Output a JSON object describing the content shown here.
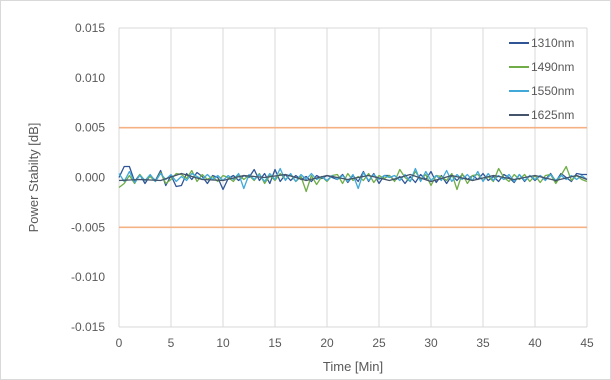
{
  "chart_data": {
    "type": "line",
    "xlabel": "Time [Min]",
    "ylabel": "Power Stabilty [dB]",
    "xlim": [
      0,
      45
    ],
    "ylim": [
      -0.015,
      0.015
    ],
    "xticks": [
      0,
      5,
      10,
      15,
      20,
      25,
      30,
      35,
      40,
      45
    ],
    "xtick_labels": [
      "0",
      "5",
      "10",
      "15",
      "20",
      "25",
      "30",
      "35",
      "40",
      "45"
    ],
    "yticks": [
      0.015,
      0.01,
      0.005,
      0.0,
      -0.005,
      -0.01,
      -0.015
    ],
    "ytick_labels": [
      "0.015",
      "0.010",
      "0.005",
      "0.000",
      "-0.005",
      "-0.010",
      "-0.015"
    ],
    "grid": "vertical",
    "legend_position": "top-right",
    "reference_lines": [
      {
        "y": 0.005,
        "color": "#f4b183"
      },
      {
        "y": -0.005,
        "color": "#f4b183"
      }
    ],
    "series": [
      {
        "name": "1310nm",
        "color": "#2f5597",
        "x": [
          0,
          0.5,
          1,
          1.5,
          2,
          2.5,
          3,
          3.5,
          4,
          4.5,
          5,
          5.5,
          6,
          6.5,
          7,
          7.5,
          8,
          8.5,
          9,
          9.5,
          10,
          10.5,
          11,
          11.5,
          12,
          12.5,
          13,
          13.5,
          14,
          14.5,
          15,
          15.5,
          16,
          16.5,
          17,
          17.5,
          18,
          18.5,
          19,
          19.5,
          20,
          20.5,
          21,
          21.5,
          22,
          22.5,
          23,
          23.5,
          24,
          24.5,
          25,
          25.5,
          26,
          26.5,
          27,
          27.5,
          28,
          28.5,
          29,
          29.5,
          30,
          30.5,
          31,
          31.5,
          32,
          32.5,
          33,
          33.5,
          34,
          34.5,
          35,
          35.5,
          36,
          36.5,
          37,
          37.5,
          38,
          38.5,
          39,
          39.5,
          40,
          40.5,
          41,
          41.5,
          42,
          42.5,
          43,
          43.5,
          44,
          44.5,
          45
        ],
        "y": [
          0.0,
          0.0011,
          0.0011,
          -0.0004,
          0.0003,
          -0.0006,
          0.0002,
          -0.0003,
          0.0007,
          -0.0008,
          0.0002,
          -0.0009,
          -0.0008,
          0.0004,
          -0.0002,
          0.0005,
          0.0001,
          -0.0006,
          0.0002,
          0.0,
          -0.0012,
          -0.0001,
          0.0002,
          -0.0003,
          0.0002,
          0.0,
          0.0008,
          -0.0003,
          0.0004,
          -0.0006,
          0.0008,
          -0.0004,
          0.0003,
          -0.0003,
          0.0002,
          -0.0002,
          0.0001,
          -0.0004,
          0.0002,
          -0.0001,
          0.0002,
          0.0,
          -0.0002,
          0.0003,
          -0.0005,
          0.0002,
          -0.0004,
          0.0006,
          -0.0004,
          0.0004,
          -0.0006,
          0.0002,
          0.0002,
          -0.0003,
          0.0001,
          -0.0006,
          0.0001,
          -0.0005,
          0.0003,
          -0.0002,
          0.0006,
          -0.0005,
          0.0002,
          -0.0006,
          0.0002,
          -0.0003,
          0.0003,
          -0.0002,
          0.0002,
          -0.0002,
          0.0004,
          -0.0003,
          0.0001,
          -0.0004,
          0.0003,
          0.0,
          -0.0005,
          0.0003,
          -0.0004,
          0.0002,
          -0.0003,
          0.0002,
          -0.0002,
          0.0004,
          -0.0004,
          0.0004,
          0.0,
          -0.0004,
          0.0004,
          0.0003,
          0.0003
        ]
      },
      {
        "name": "1490nm",
        "color": "#70ad47",
        "x": [
          0,
          0.5,
          1,
          1.5,
          2,
          2.5,
          3,
          3.5,
          4,
          4.5,
          5,
          5.5,
          6,
          6.5,
          7,
          7.5,
          8,
          8.5,
          9,
          9.5,
          10,
          10.5,
          11,
          11.5,
          12,
          12.5,
          13,
          13.5,
          14,
          14.5,
          15,
          15.5,
          16,
          16.5,
          17,
          17.5,
          18,
          18.5,
          19,
          19.5,
          20,
          20.5,
          21,
          21.5,
          22,
          22.5,
          23,
          23.5,
          24,
          24.5,
          25,
          25.5,
          26,
          26.5,
          27,
          27.5,
          28,
          28.5,
          29,
          29.5,
          30,
          30.5,
          31,
          31.5,
          32,
          32.5,
          33,
          33.5,
          34,
          34.5,
          35,
          35.5,
          36,
          36.5,
          37,
          37.5,
          38,
          38.5,
          39,
          39.5,
          40,
          40.5,
          41,
          41.5,
          42,
          42.5,
          43,
          43.5,
          44,
          44.5,
          45
        ],
        "y": [
          -0.001,
          -0.0006,
          0.0002,
          -0.0006,
          0.0003,
          -0.0003,
          0.0001,
          -0.0004,
          0.0005,
          -0.0006,
          -0.0002,
          0.0004,
          0.0003,
          -0.0001,
          0.0007,
          -0.0004,
          0.0003,
          -0.0002,
          0.0001,
          -0.0004,
          0.0002,
          0.0,
          -0.0004,
          0.0003,
          -0.0002,
          0.0002,
          -0.0003,
          0.0004,
          -0.0006,
          0.0002,
          -0.0003,
          0.0004,
          -0.0002,
          0.0003,
          -0.0004,
          0.0001,
          -0.0014,
          0.0002,
          -0.0007,
          0.0001,
          -0.0004,
          0.0002,
          0.0003,
          -0.0006,
          0.0004,
          -0.0003,
          0.0001,
          -0.0003,
          0.0004,
          -0.0005,
          0.0002,
          -0.0001,
          0.0002,
          -0.0004,
          0.0008,
          0.0,
          -0.0004,
          0.0006,
          -0.0002,
          0.0003,
          -0.0008,
          0.0002,
          0.0001,
          -0.0003,
          0.0004,
          -0.0012,
          0.0004,
          -0.0006,
          0.0002,
          0.0003,
          -0.0003,
          0.0001,
          -0.0004,
          0.0009,
          0.0,
          -0.0004,
          0.0003,
          -0.0002,
          0.0003,
          -0.0004,
          0.0002,
          -0.0005,
          0.0002,
          0.0003,
          -0.0006,
          0.0002,
          0.0011,
          -0.0003,
          0.0002,
          -0.0002,
          -0.0004
        ]
      },
      {
        "name": "1550nm",
        "color": "#41a9d9",
        "x": [
          0,
          0.5,
          1,
          1.5,
          2,
          2.5,
          3,
          3.5,
          4,
          4.5,
          5,
          5.5,
          6,
          6.5,
          7,
          7.5,
          8,
          8.5,
          9,
          9.5,
          10,
          10.5,
          11,
          11.5,
          12,
          12.5,
          13,
          13.5,
          14,
          14.5,
          15,
          15.5,
          16,
          16.5,
          17,
          17.5,
          18,
          18.5,
          19,
          19.5,
          20,
          20.5,
          21,
          21.5,
          22,
          22.5,
          23,
          23.5,
          24,
          24.5,
          25,
          25.5,
          26,
          26.5,
          27,
          27.5,
          28,
          28.5,
          29,
          29.5,
          30,
          30.5,
          31,
          31.5,
          32,
          32.5,
          33,
          33.5,
          34,
          34.5,
          35,
          35.5,
          36,
          36.5,
          37,
          37.5,
          38,
          38.5,
          39,
          39.5,
          40,
          40.5,
          41,
          41.5,
          42,
          42.5,
          43,
          43.5,
          44,
          44.5,
          45
        ],
        "y": [
          0.0004,
          -0.0004,
          0.0006,
          -0.0005,
          0.0002,
          -0.0003,
          0.0003,
          -0.0004,
          0.0004,
          -0.0002,
          0.0003,
          -0.0004,
          0.0001,
          -0.0003,
          0.0004,
          0.0001,
          -0.0002,
          0.0003,
          -0.0002,
          0.0002,
          -0.0003,
          0.0002,
          -0.0002,
          0.0004,
          -0.0011,
          0.0003,
          -0.0002,
          0.0003,
          -0.0004,
          0.0004,
          -0.0002,
          0.0009,
          -0.0003,
          0.0004,
          -0.0004,
          0.0003,
          -0.0002,
          0.0004,
          -0.0002,
          0.0001,
          -0.0003,
          0.0002,
          -0.0002,
          0.0002,
          -0.0004,
          0.0003,
          -0.0011,
          0.0005,
          -0.0003,
          0.0003,
          -0.0002,
          0.0002,
          0.0,
          0.0002,
          -0.0003,
          0.0003,
          -0.0004,
          0.0009,
          -0.0004,
          0.0006,
          -0.0003,
          0.0002,
          -0.0003,
          0.0007,
          -0.0004,
          0.0003,
          -0.0002,
          0.0003,
          -0.0003,
          0.0006,
          -0.0004,
          0.0004,
          -0.0003,
          0.0002,
          -0.0002,
          0.0003,
          -0.0004,
          0.0003,
          -0.0003,
          0.0002,
          -0.0002,
          0.0002,
          -0.0003,
          0.0003,
          -0.0003,
          0.0002,
          -0.0002,
          0.0002,
          -0.0002,
          0.0002,
          -0.0002
        ]
      },
      {
        "name": "1625nm",
        "color": "#44546a",
        "x": [
          0,
          2,
          4,
          6,
          8,
          10,
          12,
          14,
          16,
          18,
          20,
          22,
          24,
          26,
          28,
          30,
          32,
          34,
          36,
          38,
          40,
          42,
          44,
          45
        ],
        "y": [
          -0.0003,
          -0.0002,
          -0.0003,
          0.0004,
          -0.0002,
          -0.0003,
          0.0002,
          0.0,
          0.0003,
          -0.0003,
          0.0002,
          -0.0002,
          0.0002,
          -0.0003,
          0.0003,
          -0.0004,
          0.0002,
          -0.0003,
          0.0002,
          -0.0002,
          0.0002,
          -0.0003,
          0.0002,
          -0.0002
        ]
      }
    ]
  }
}
